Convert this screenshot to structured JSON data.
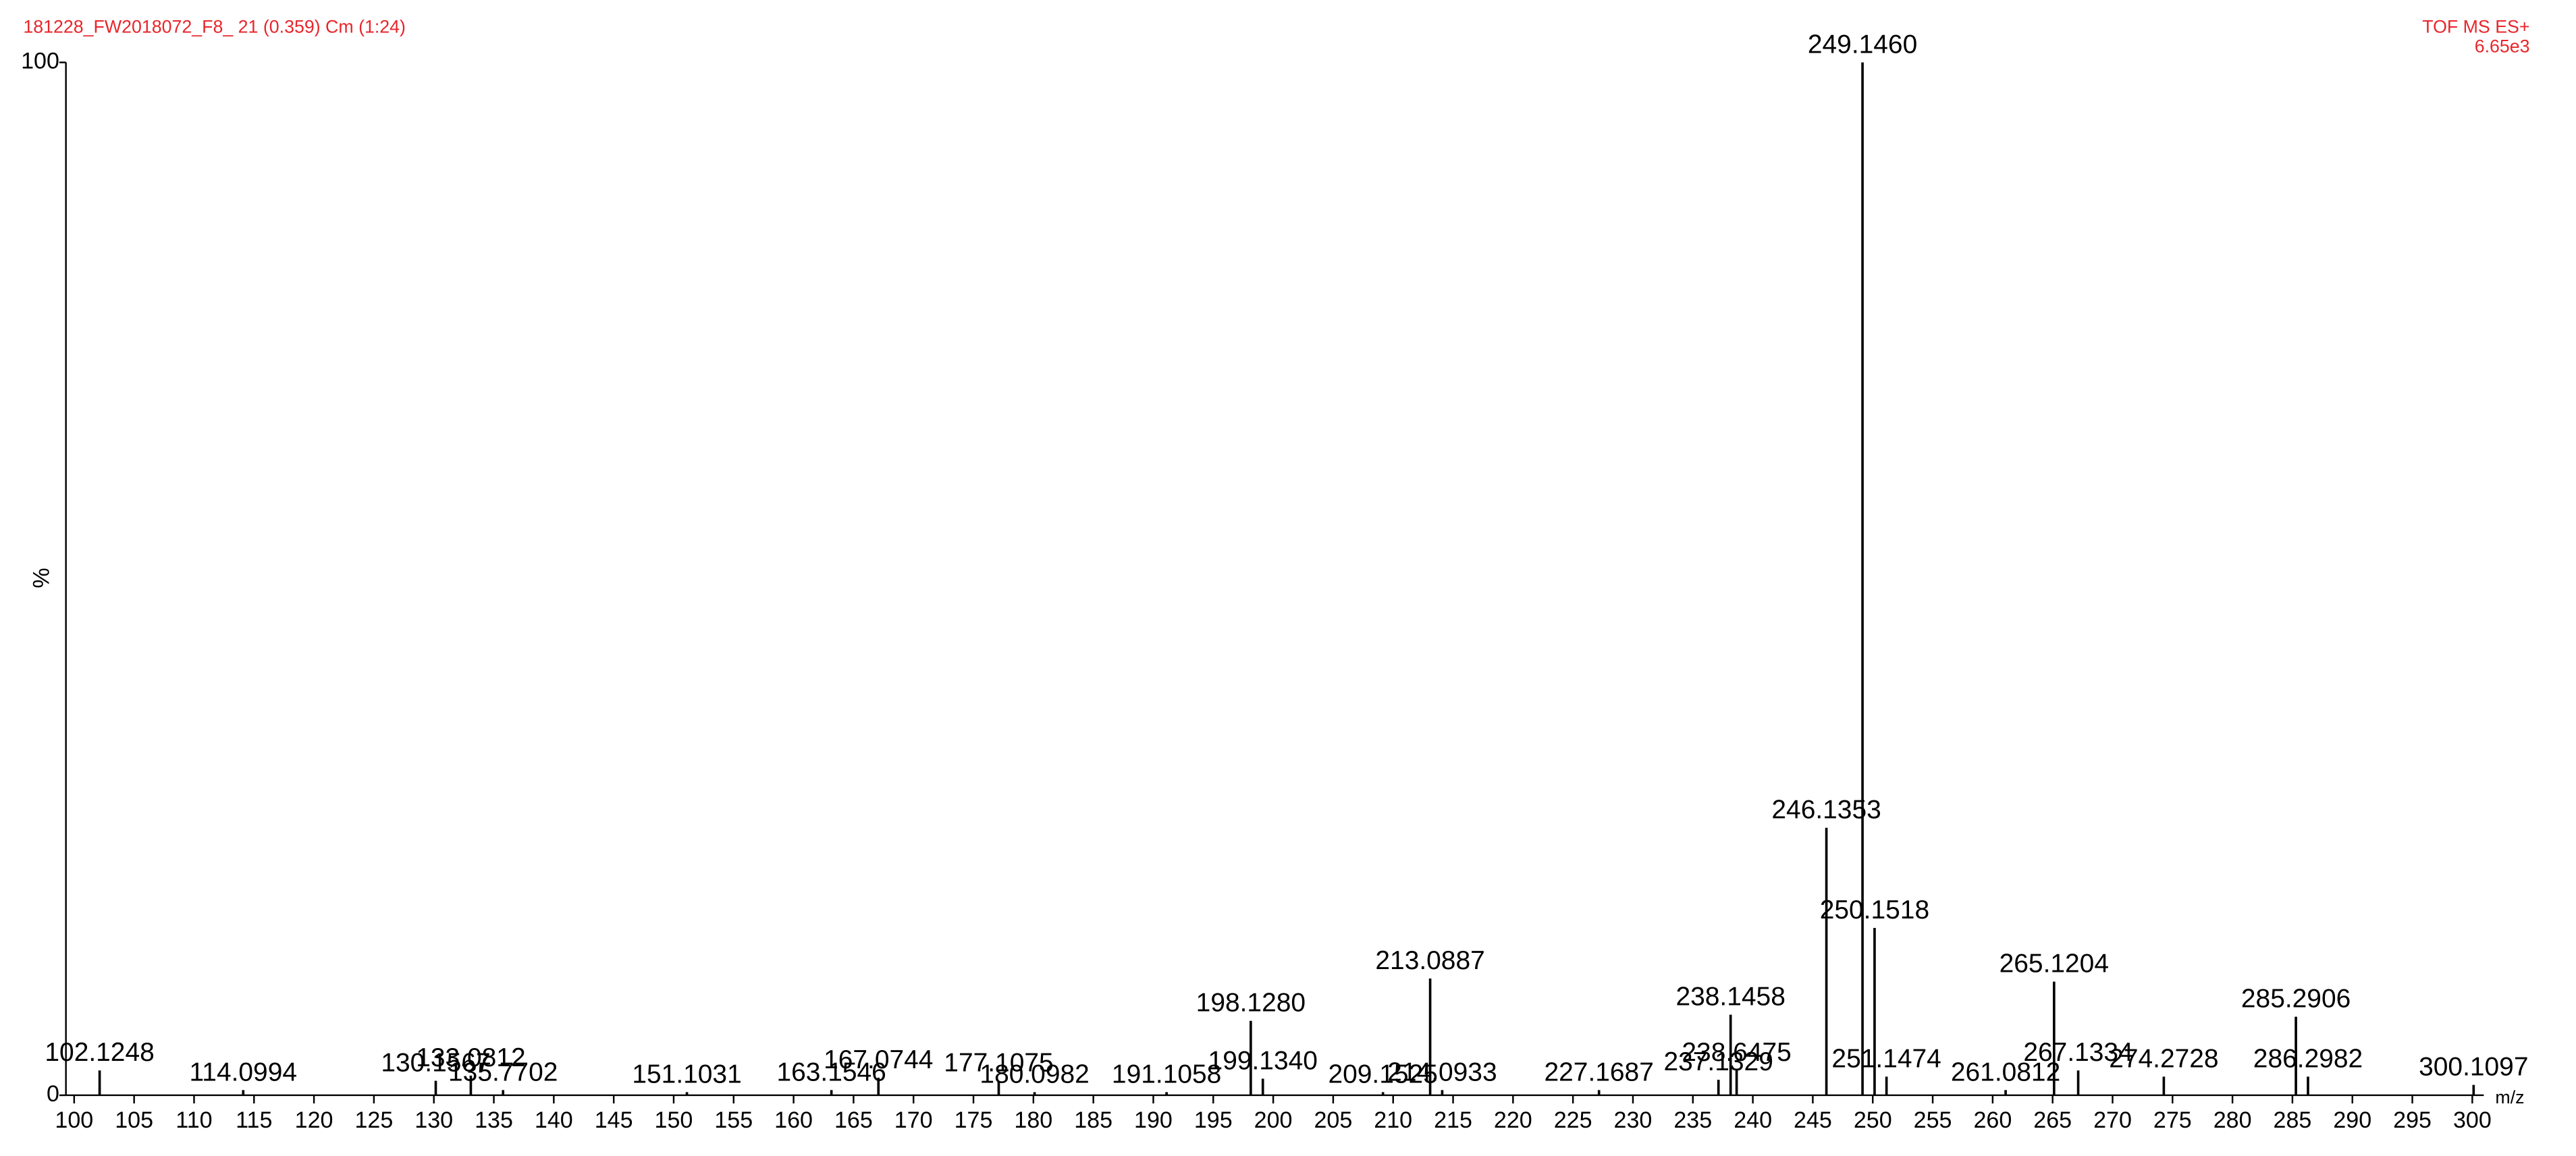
{
  "chart_data": {
    "type": "spectrum",
    "title": "181228_FW2018072_F8_ 21 (0.359) Cm (1:24)",
    "mode": "TOF MS ES+",
    "intensity": "6.65e3",
    "ylabel": "%",
    "xlabel": "m/z",
    "color": "#000000",
    "x": [
      102.1248,
      114.0994,
      130.1567,
      133.0812,
      135.7702,
      151.1031,
      163.1546,
      167.0744,
      177.1075,
      180.0982,
      191.1058,
      198.128,
      199.134,
      209.1525,
      213.0887,
      214.0933,
      227.1687,
      237.1329,
      238.1458,
      238.6475,
      246.1353,
      249.146,
      250.1518,
      251.1474,
      261.0812,
      265.1204,
      267.1334,
      274.2728,
      285.2906,
      286.2982,
      300.1097
    ],
    "x_labels": [
      "102.1248",
      "114.0994",
      "130.1567",
      "133.0812",
      "135.7702",
      "151.1031",
      "163.1546",
      "167.0744",
      "177.1075",
      "180.0982",
      "191.1058",
      "198.1280",
      "199.1340",
      "209.1525",
      "213.0887",
      "214.0933",
      "227.1687",
      "237.1329",
      "238.1458",
      "238.6475",
      "246.1353",
      "249.1460",
      "250.1518",
      "251.1474",
      "261.0812",
      "265.1204",
      "267.1334",
      "274.2728",
      "285.2906",
      "286.2982",
      "300.1097"
    ],
    "values": [
      2.4,
      0.5,
      1.4,
      1.9,
      0.5,
      0.3,
      0.5,
      1.7,
      1.4,
      0.3,
      0.3,
      7.2,
      1.6,
      0.3,
      11.3,
      0.5,
      0.5,
      1.5,
      7.8,
      2.4,
      25.9,
      100,
      16.2,
      1.8,
      0.5,
      11.0,
      2.4,
      1.8,
      7.6,
      1.8,
      1.0
    ],
    "xlim": [
      100,
      300
    ],
    "ylim": [
      0,
      100
    ],
    "xticks": [
      100,
      105,
      110,
      115,
      120,
      125,
      130,
      135,
      140,
      145,
      150,
      155,
      160,
      165,
      170,
      175,
      180,
      185,
      190,
      195,
      200,
      205,
      210,
      215,
      220,
      225,
      230,
      235,
      240,
      245,
      250,
      255,
      260,
      265,
      270,
      275,
      280,
      285,
      290,
      295,
      300
    ],
    "yticks": [
      0,
      100
    ]
  }
}
